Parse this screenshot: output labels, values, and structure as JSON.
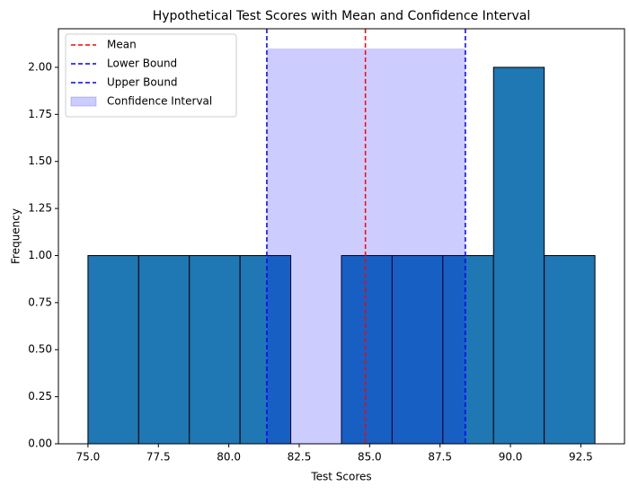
{
  "chart_data": {
    "type": "histogram",
    "title": "Hypothetical Test Scores with Mean and Confidence Interval",
    "x_label": "Test Scores",
    "y_label": "Frequency",
    "bins": [
      75.0,
      76.8,
      78.6,
      80.4,
      82.2,
      84.0,
      85.8,
      87.6,
      89.4,
      91.2,
      93.0
    ],
    "values": [
      1,
      1,
      1,
      1,
      0,
      1,
      1,
      1,
      2,
      1
    ],
    "color": "#1f77b4",
    "edge_color": "#000000",
    "vlines": [
      {
        "name": "Mean",
        "value": 84.85,
        "color": "#ff0000"
      },
      {
        "name": "Lower Bound",
        "value": 81.35,
        "color": "#0000ff"
      },
      {
        "name": "Upper Bound",
        "value": 88.4,
        "color": "#0000ff"
      }
    ],
    "span": {
      "name": "Confidence Interval",
      "from": 81.35,
      "to": 88.4,
      "top": 2.1,
      "color": "#0000ff"
    },
    "xlim": [
      73.95,
      94.05
    ],
    "ylim": [
      0,
      2.205
    ],
    "xticks": [
      {
        "value": 75,
        "label": "75.0"
      },
      {
        "value": 77.5,
        "label": "77.5"
      },
      {
        "value": 80,
        "label": "80.0"
      },
      {
        "value": 82.5,
        "label": "82.5"
      },
      {
        "value": 85,
        "label": "85.0"
      },
      {
        "value": 87.5,
        "label": "87.5"
      },
      {
        "value": 90,
        "label": "90.0"
      },
      {
        "value": 92.5,
        "label": "92.5"
      }
    ],
    "yticks": [
      {
        "value": 0,
        "label": "0.00"
      },
      {
        "value": 0.25,
        "label": "0.25"
      },
      {
        "value": 0.5,
        "label": "0.50"
      },
      {
        "value": 0.75,
        "label": "0.75"
      },
      {
        "value": 1,
        "label": "1.00"
      },
      {
        "value": 1.25,
        "label": "1.25"
      },
      {
        "value": 1.5,
        "label": "1.50"
      },
      {
        "value": 1.75,
        "label": "1.75"
      },
      {
        "value": 2,
        "label": "2.00"
      }
    ],
    "legend": "upper left"
  }
}
